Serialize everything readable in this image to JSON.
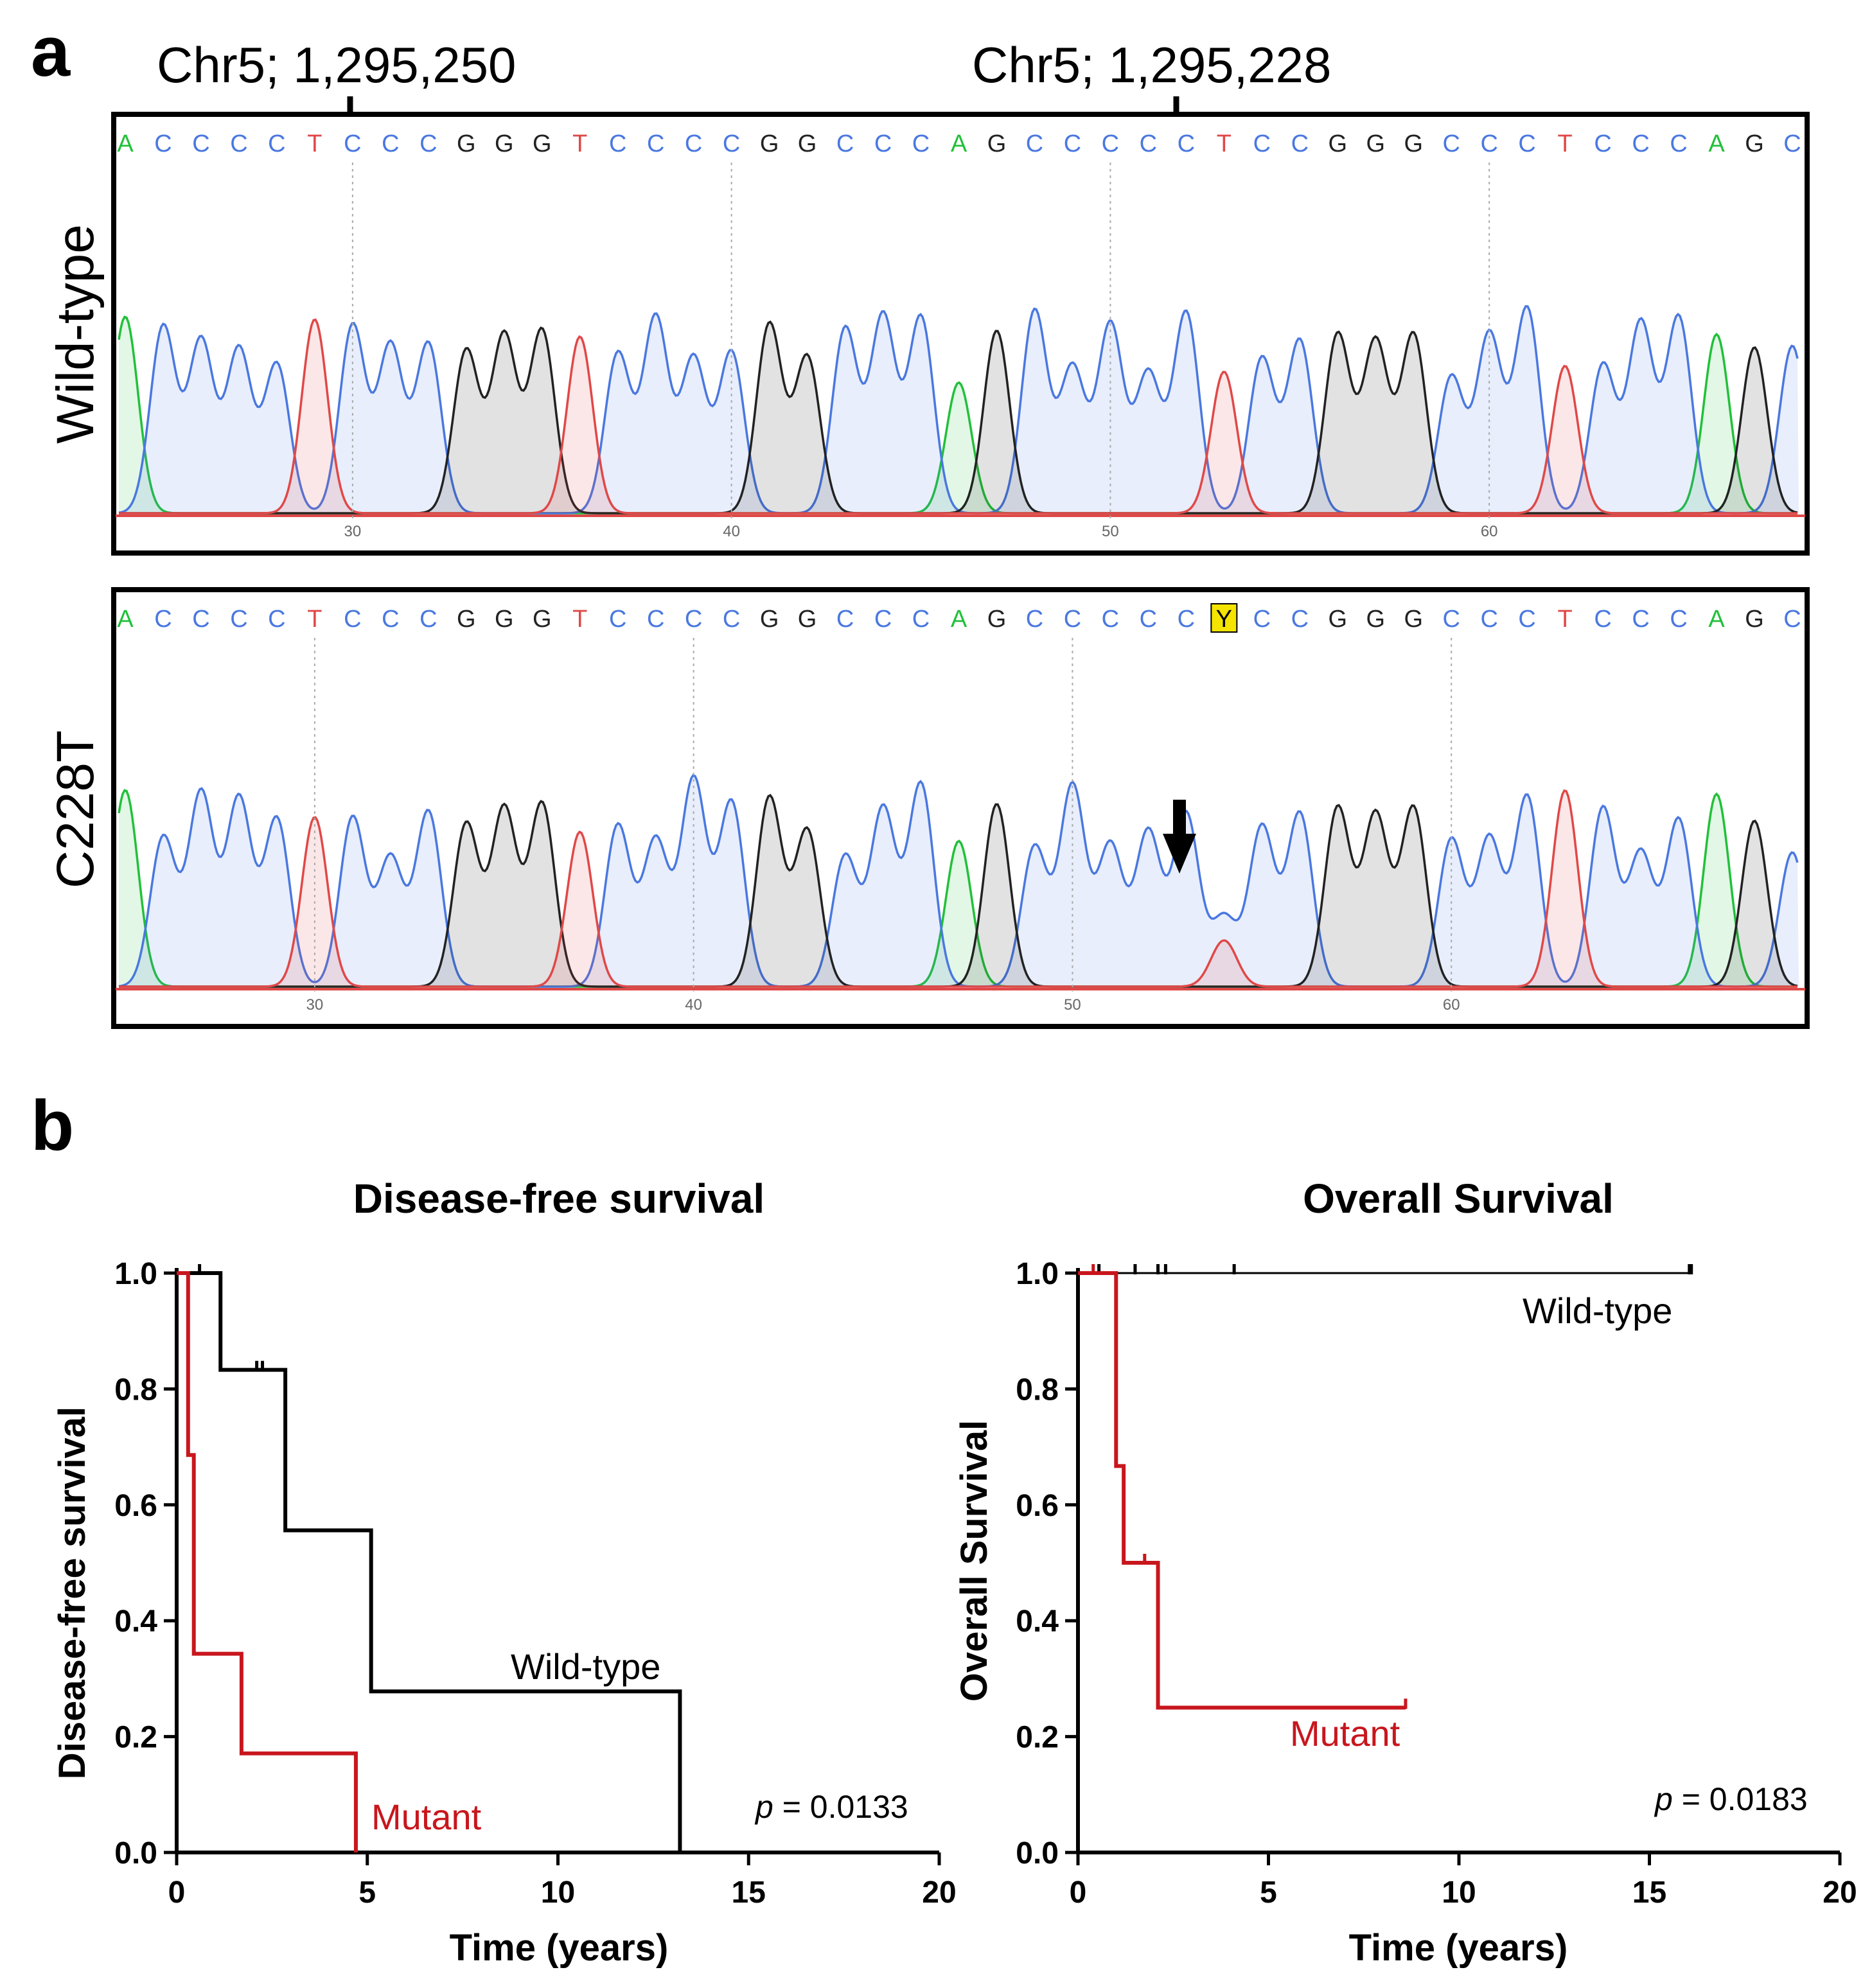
{
  "panel_a": {
    "letter": "a",
    "coord_labels": [
      "Chr5; 1,295,250",
      "Chr5; 1,295,228"
    ],
    "sequence": "ACCCCTCCCGGGTCCCCGGCCCAGCCCCCTCCGGGCCCTCCCAGC",
    "base_colors": {
      "A": "#22c03a",
      "C": "#4a78e0",
      "G": "#222222",
      "T": "#e04848"
    },
    "tracks": [
      {
        "label": "Wild-type",
        "position_ticks": [
          "30",
          "40",
          "50",
          "60"
        ]
      },
      {
        "label": "C228T",
        "mutation_call": "Y",
        "position_ticks": [
          "30",
          "40",
          "50",
          "60"
        ]
      }
    ]
  },
  "panel_b": {
    "letter": "b"
  },
  "chart_data": [
    {
      "type": "line",
      "step": true,
      "title": "Disease-free survival",
      "xlabel": "Time (years)",
      "ylabel": "Disease-free survival",
      "xlim": [
        0,
        20
      ],
      "ylim": [
        0,
        1
      ],
      "xticks": [
        "0",
        "5",
        "10",
        "15",
        "20"
      ],
      "yticks": [
        "0.0",
        "0.2",
        "0.4",
        "0.6",
        "0.8",
        "1.0"
      ],
      "p_label": "p",
      "p_value": " = 0.0133",
      "series": [
        {
          "name": "Wild-type",
          "color": "#000000",
          "x": [
            0,
            1.15,
            2.85,
            5.1,
            13.2
          ],
          "y": [
            1.0,
            0.833,
            0.556,
            0.278,
            0.0
          ],
          "censored": [
            [
              0.6,
              1.0
            ],
            [
              2.1,
              0.833
            ],
            [
              2.25,
              0.833
            ]
          ]
        },
        {
          "name": "Mutant",
          "color": "#c8161d",
          "x": [
            0,
            0.3,
            0.45,
            1.7,
            4.7
          ],
          "y": [
            1.0,
            0.686,
            0.343,
            0.171,
            0.0
          ],
          "censored": []
        }
      ]
    },
    {
      "type": "line",
      "step": true,
      "title": "Overall Survival",
      "xlabel": "Time (years)",
      "ylabel": "Overall Survival",
      "xlim": [
        0,
        20
      ],
      "ylim": [
        0,
        1
      ],
      "xticks": [
        "0",
        "5",
        "10",
        "15",
        "20"
      ],
      "yticks": [
        "0.0",
        "0.2",
        "0.4",
        "0.6",
        "0.8",
        "1.0"
      ],
      "p_label": "p",
      "p_value": " = 0.0183",
      "series": [
        {
          "name": "Wild-type",
          "color": "#000000",
          "x": [
            0,
            16.1
          ],
          "y": [
            1.0,
            1.0
          ],
          "censored": [
            [
              0.55,
              1.0
            ],
            [
              1.5,
              1.0
            ],
            [
              2.1,
              1.0
            ],
            [
              2.3,
              1.0
            ],
            [
              4.1,
              1.0
            ],
            [
              16.05,
              1.0
            ],
            [
              16.1,
              1.0
            ]
          ]
        },
        {
          "name": "Mutant",
          "color": "#c8161d",
          "x": [
            0,
            1.0,
            1.2,
            2.1,
            8.6
          ],
          "y": [
            1.0,
            0.667,
            0.5,
            0.25,
            0.25
          ],
          "censored": [
            [
              0.4,
              1.0
            ],
            [
              1.75,
              0.5
            ],
            [
              8.6,
              0.25
            ]
          ]
        }
      ]
    }
  ]
}
